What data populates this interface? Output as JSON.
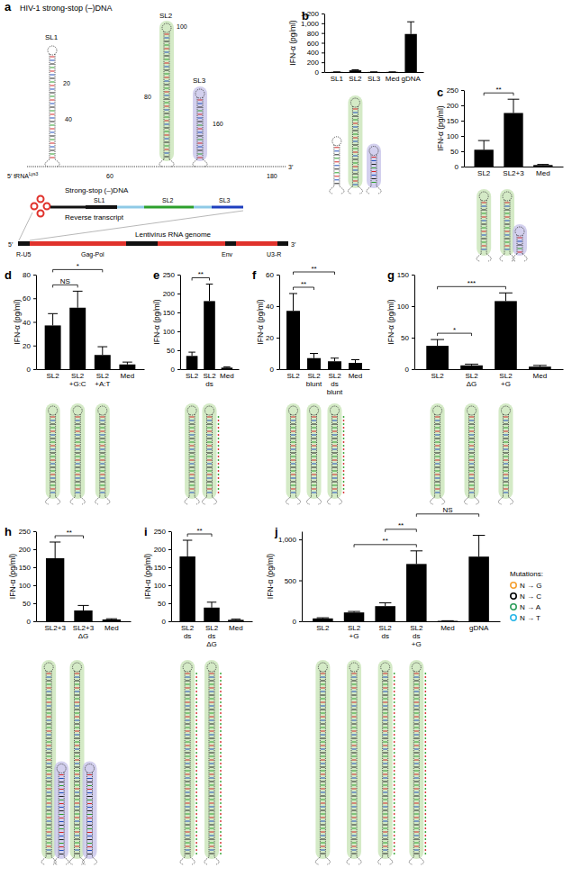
{
  "chart_data": [
    {
      "type": "bar",
      "title": "b",
      "y_label": "IFN-α (pg/ml)",
      "color": "#000000",
      "categories": [
        "SL1",
        "SL2",
        "SL3",
        "Med",
        "gDNA"
      ],
      "values": [
        3,
        35,
        3,
        3,
        780
      ],
      "errors": [
        1,
        12,
        1,
        1,
        250
      ],
      "ylim": [
        0,
        1200
      ],
      "yticks": [
        0,
        200,
        400,
        600,
        800,
        {
          "value": 1000,
          "label": "1,000"
        },
        {
          "value": 1200,
          "label": "1,200"
        }
      ],
      "significance": []
    },
    {
      "type": "bar",
      "title": "c",
      "y_label": "IFN-α (pg/ml)",
      "color": "#000000",
      "categories": [
        "SL2",
        "SL2+3",
        "Med"
      ],
      "values": [
        55,
        175,
        5
      ],
      "errors": [
        30,
        45,
        2
      ],
      "ylim": [
        0,
        250
      ],
      "yticks": [
        0,
        50,
        100,
        150,
        200,
        250
      ],
      "significance": [
        {
          "from": 0,
          "to": 1,
          "label": "**"
        }
      ]
    },
    {
      "type": "bar",
      "title": "d",
      "y_label": "IFN-α (pg/ml)",
      "color": "#000000",
      "categories": [
        "SL2",
        "SL2 +G:C",
        "SL2 +A:T",
        "Med"
      ],
      "values": [
        37,
        52,
        12,
        4
      ],
      "errors": [
        10,
        14,
        7,
        2
      ],
      "ylim": [
        0,
        80
      ],
      "yticks": [
        0,
        20,
        40,
        60,
        80
      ],
      "significance": [
        {
          "from": 0,
          "to": 1,
          "label": "NS"
        },
        {
          "from": 0,
          "to": 2,
          "label": "*"
        }
      ]
    },
    {
      "type": "bar",
      "title": "e",
      "y_label": "IFN-α (pg/ml)",
      "color": "#000000",
      "categories": [
        "SL2",
        "SL2 ds",
        "Med"
      ],
      "values": [
        35,
        180,
        4
      ],
      "errors": [
        10,
        45,
        2
      ],
      "ylim": [
        0,
        250
      ],
      "yticks": [
        0,
        50,
        100,
        150,
        200,
        250
      ],
      "significance": [
        {
          "from": 0,
          "to": 1,
          "label": "**"
        }
      ]
    },
    {
      "type": "bar",
      "title": "f",
      "y_label": "IFN-α (pg/ml)",
      "color": "#000000",
      "categories": [
        "SL2",
        "SL2 blunt",
        "SL2 ds blunt",
        "Med"
      ],
      "values": [
        37,
        7,
        5,
        4
      ],
      "errors": [
        11,
        3,
        2,
        2
      ],
      "ylim": [
        0,
        60
      ],
      "yticks": [
        0,
        20,
        40,
        60
      ],
      "significance": [
        {
          "from": 0,
          "to": 1,
          "label": "**"
        },
        {
          "from": 0,
          "to": 2,
          "label": "**"
        }
      ]
    },
    {
      "type": "bar",
      "title": "g",
      "y_label": "IFN-α (pg/ml)",
      "color": "#000000",
      "categories": [
        "SL2",
        "SL2 ΔG",
        "SL2 +G",
        "Med"
      ],
      "values": [
        37,
        6,
        108,
        4
      ],
      "errors": [
        10,
        2,
        13,
        2
      ],
      "ylim": [
        0,
        150
      ],
      "yticks": [
        0,
        50,
        100,
        150
      ],
      "significance": [
        {
          "from": 0,
          "to": 1,
          "label": "*"
        },
        {
          "from": 0,
          "to": 2,
          "label": "***"
        }
      ]
    },
    {
      "type": "bar",
      "title": "h",
      "y_label": "IFN-α (pg/ml)",
      "color": "#000000",
      "categories": [
        "SL2+3",
        "SL2+3 ΔG",
        "Med"
      ],
      "values": [
        175,
        30,
        5
      ],
      "errors": [
        45,
        14,
        2
      ],
      "ylim": [
        0,
        250
      ],
      "yticks": [
        0,
        50,
        100,
        150,
        200,
        250
      ],
      "significance": [
        {
          "from": 0,
          "to": 1,
          "label": "**"
        }
      ]
    },
    {
      "type": "bar",
      "title": "i",
      "y_label": "IFN-α (pg/ml)",
      "color": "#000000",
      "categories": [
        "SL2 ds",
        "SL2 ds ΔG",
        "Med"
      ],
      "values": [
        180,
        38,
        4
      ],
      "errors": [
        45,
        15,
        2
      ],
      "ylim": [
        0,
        250
      ],
      "yticks": [
        0,
        50,
        100,
        150,
        200,
        250
      ],
      "significance": [
        {
          "from": 0,
          "to": 1,
          "label": "**"
        }
      ]
    },
    {
      "type": "bar",
      "title": "j",
      "y_label": "IFN-α (pg/ml)",
      "color": "#000000",
      "categories": [
        "SL2",
        "SL2 +G",
        "SL2 ds",
        "SL2 ds +G",
        "Med",
        "gDNA"
      ],
      "values": [
        35,
        108,
        185,
        700,
        5,
        790
      ],
      "errors": [
        8,
        12,
        40,
        160,
        2,
        260
      ],
      "ylim": [
        0,
        1100
      ],
      "yticks": [
        0,
        500,
        {
          "value": 1000,
          "label": "1,000"
        }
      ],
      "significance": [
        {
          "from": 1,
          "to": 3,
          "label": "**"
        },
        {
          "from": 2,
          "to": 3,
          "label": "**"
        },
        {
          "from": 3,
          "to": 5,
          "label": "NS"
        }
      ]
    }
  ],
  "panel_a": {
    "title": "a",
    "heading": "HIV-1 strong-stop (–)DNA",
    "hairpins": [
      "SL1",
      "SL2",
      "SL3"
    ],
    "position_labels": [
      20,
      40,
      60,
      80,
      100,
      160,
      180
    ],
    "five_prime": "5′",
    "three_prime": "3′",
    "trna": "tRNA",
    "trna_superscript": "Lys3",
    "strong_stop": "Strong-stop (–)DNA",
    "reverse_transcript": "Reverse transcript",
    "segments": [
      "SL1",
      "SL2",
      "SL3"
    ],
    "genome_title": "Lentivirus RNA genome",
    "genome_regions": [
      "R-U5",
      "Gag-Pol",
      "Env",
      "U3-R"
    ]
  },
  "mutation_legend": {
    "title": "Mutations:",
    "items": [
      {
        "label": "N → G",
        "color": "#f5a031"
      },
      {
        "label": "N → C",
        "color": "#000000"
      },
      {
        "label": "N → A",
        "color": "#2e9e5b"
      },
      {
        "label": "N → T",
        "color": "#29b6e8"
      }
    ]
  }
}
